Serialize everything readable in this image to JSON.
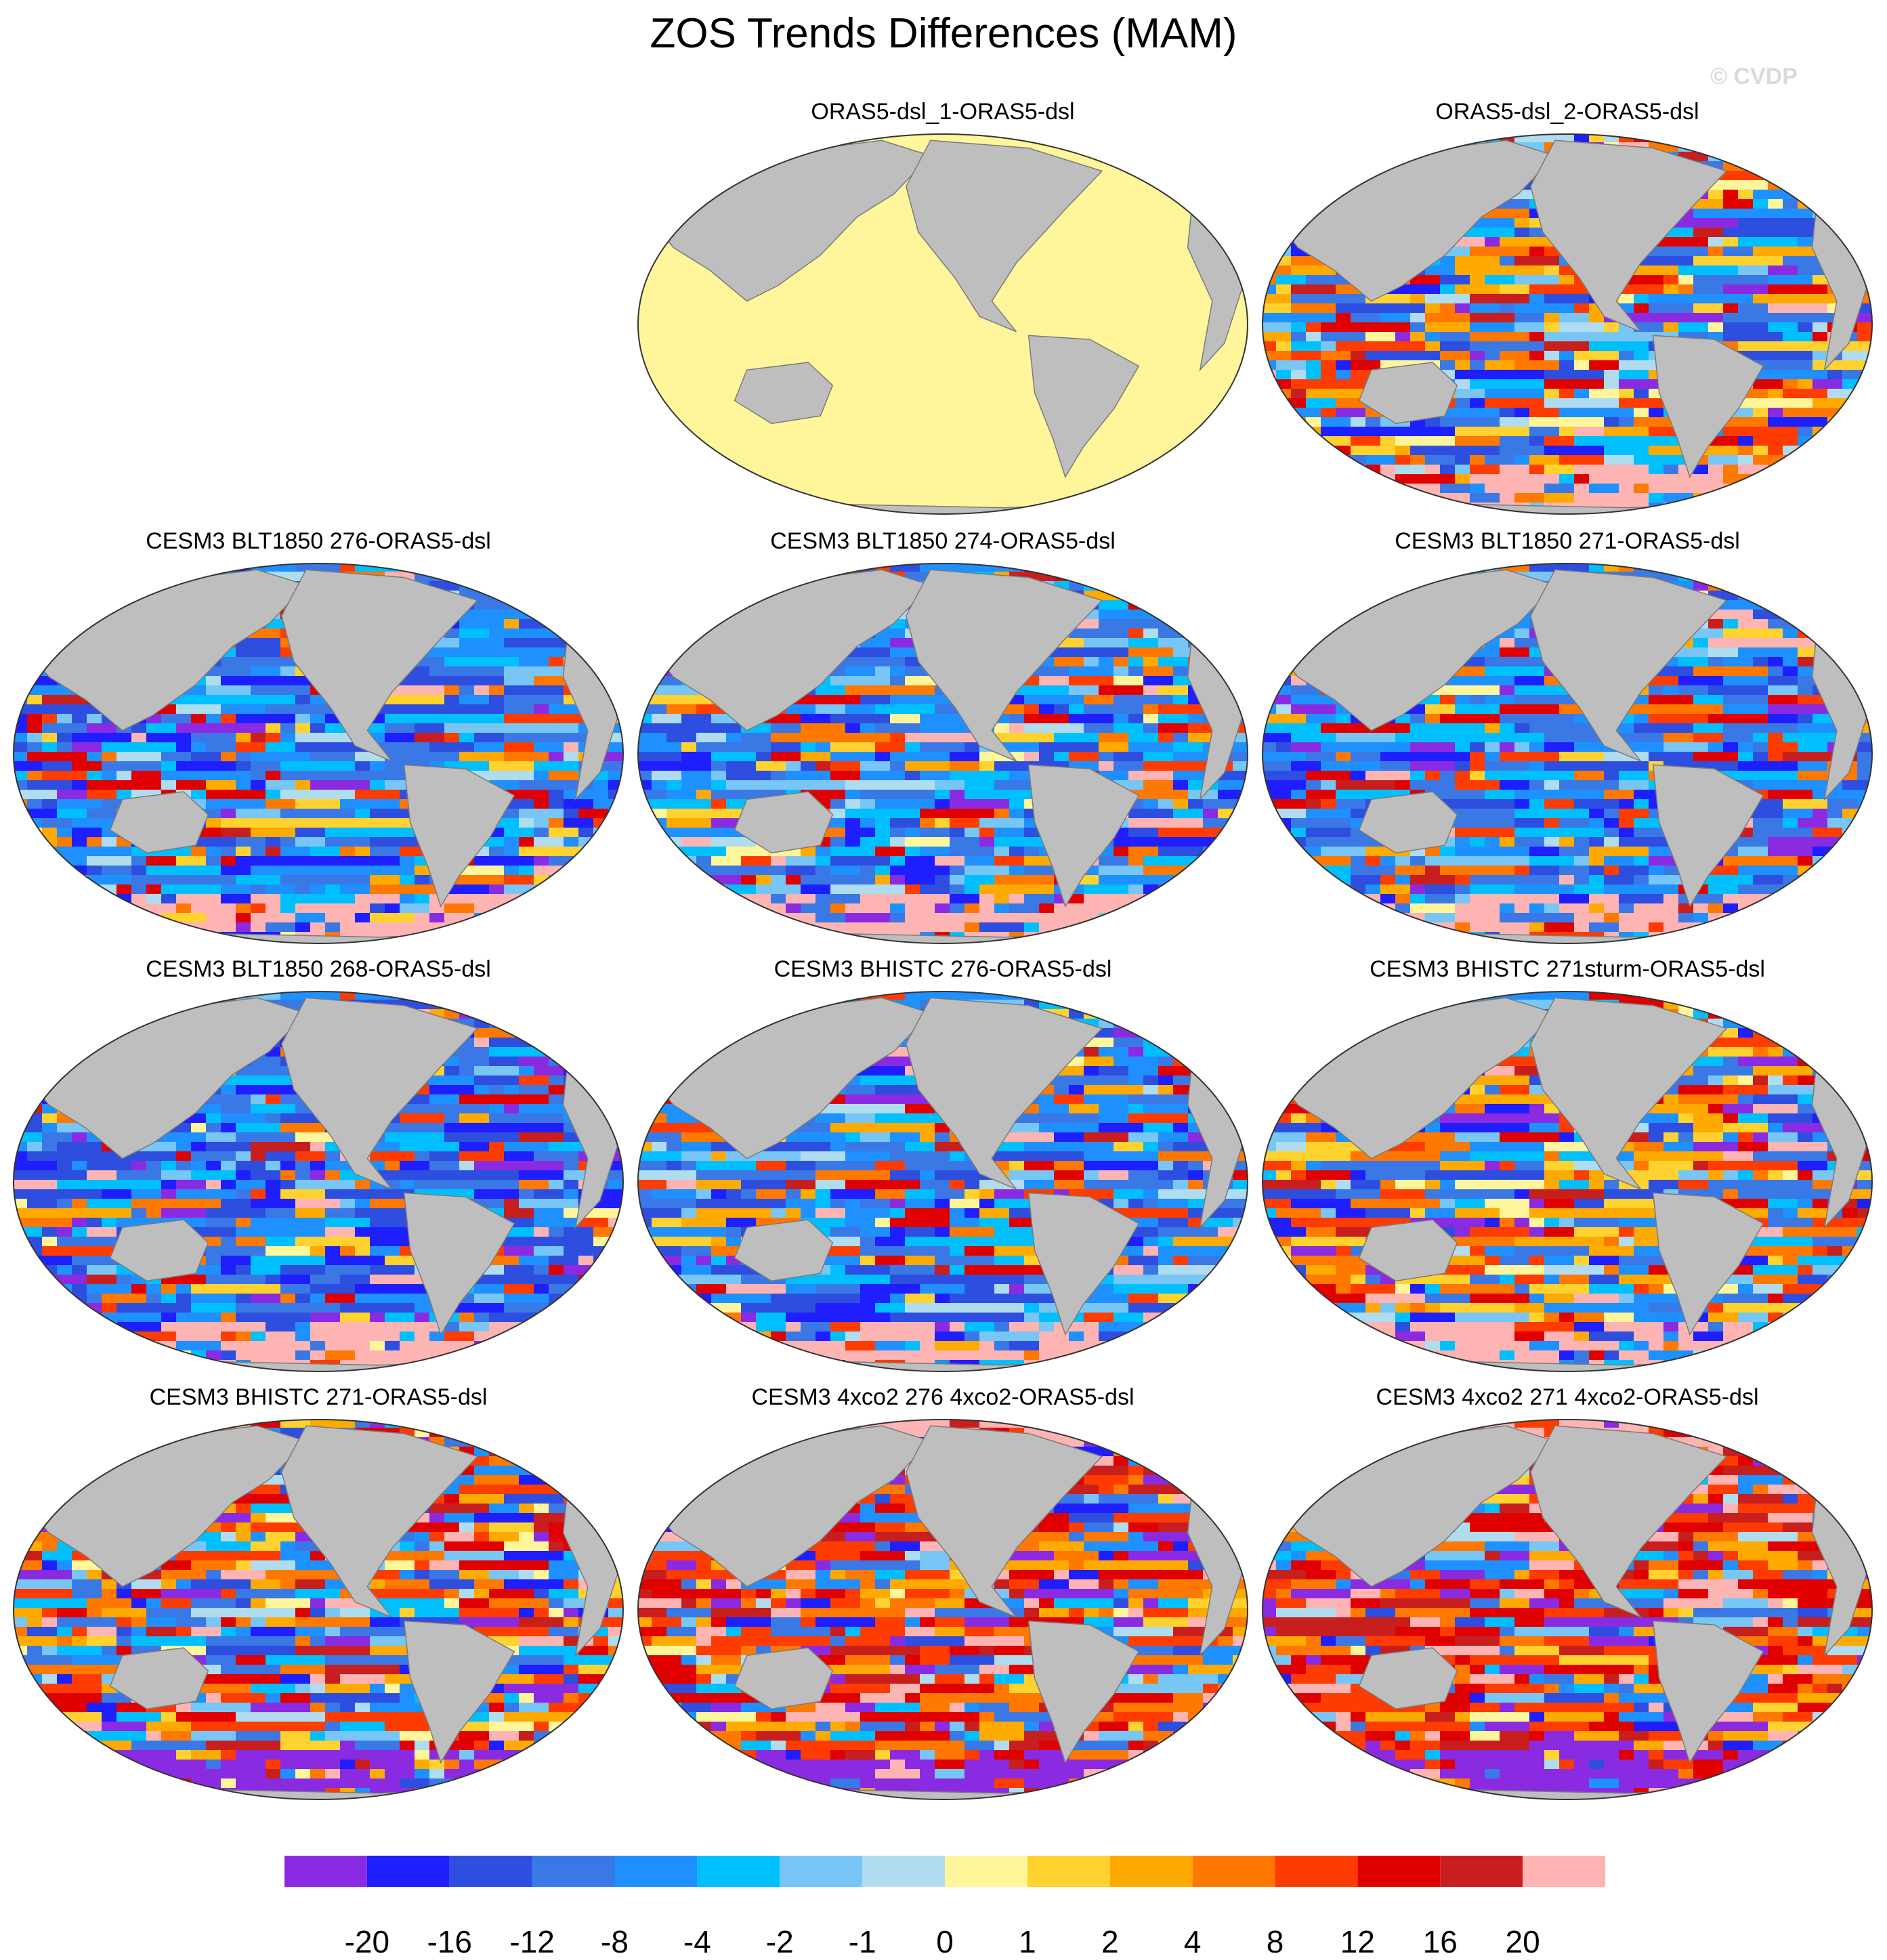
{
  "title": "ZOS Trends Differences (MAM)",
  "watermark": "© CVDP",
  "panels": [
    {
      "title": "ORAS5-dsl_1-ORAS5-dsl",
      "pattern": "zero"
    },
    {
      "title": "ORAS5-dsl_2-ORAS5-dsl",
      "pattern": "mixed"
    },
    {
      "title": "CESM3 BLT1850 276-ORAS5-dsl",
      "pattern": "cool"
    },
    {
      "title": "CESM3 BLT1850 274-ORAS5-dsl",
      "pattern": "cool"
    },
    {
      "title": "CESM3 BLT1850 271-ORAS5-dsl",
      "pattern": "cool"
    },
    {
      "title": "CESM3 BLT1850 268-ORAS5-dsl",
      "pattern": "cooler"
    },
    {
      "title": "CESM3 BHISTC 276-ORAS5-dsl",
      "pattern": "cool"
    },
    {
      "title": "CESM3 BHISTC 271sturm-ORAS5-dsl",
      "pattern": "mixed"
    },
    {
      "title": "CESM3 BHISTC 271-ORAS5-dsl",
      "pattern": "warm"
    },
    {
      "title": "CESM3 4xco2 276 4xco2-ORAS5-dsl",
      "pattern": "hot"
    },
    {
      "title": "CESM3 4xco2 271 4xco2-ORAS5-dsl",
      "pattern": "hot"
    }
  ],
  "colorbar": {
    "colors": [
      "#8a2be2",
      "#1e1eff",
      "#2e4ee0",
      "#3a78e6",
      "#1e90ff",
      "#00bfff",
      "#78c6f5",
      "#b0dcf0",
      "#fff59a",
      "#ffd230",
      "#ffaa00",
      "#ff7800",
      "#ff3c00",
      "#e00000",
      "#c81e1e",
      "#ffb4b4"
    ],
    "labels": [
      "-20",
      "-16",
      "-12",
      "-8",
      "-4",
      "-2",
      "-1",
      "0",
      "1",
      "2",
      "4",
      "8",
      "12",
      "16",
      "20"
    ]
  },
  "land_color": "#bebebe",
  "ocean_zero_color": "#fff59a"
}
